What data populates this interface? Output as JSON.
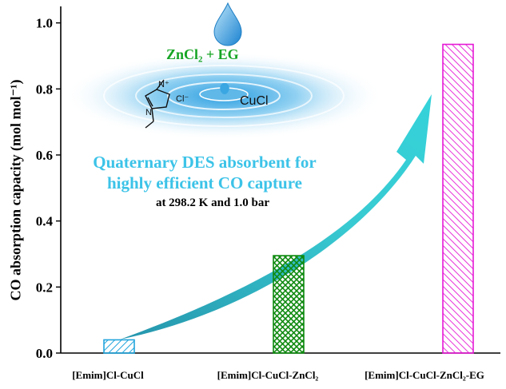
{
  "chart_data": {
    "type": "bar",
    "categories": [
      "[Emim]Cl-CuCl",
      "[Emim]Cl-CuCl-ZnCl₂",
      "[Emim]Cl-CuCl-ZnCl₂-EG"
    ],
    "values": [
      0.04,
      0.295,
      0.935
    ],
    "bar_colors": [
      "#22a5dc",
      "#0f8a10",
      "#e61ad6"
    ],
    "ylabel": "CO absorption capacity (mol mol⁻¹)",
    "ylim": [
      0,
      1.05
    ],
    "yticks": [
      0.0,
      0.2,
      0.4,
      0.6,
      0.8,
      1.0
    ],
    "ytick_labels": [
      "0.0",
      "0.2",
      "0.4",
      "0.6",
      "0.8",
      "1.0"
    ],
    "grid": false
  },
  "annotation": {
    "title_line1": "Quaternary DES absorbent for",
    "title_line2": "highly efficient CO capture",
    "conditions": "at 298.2 K and 1.0 bar",
    "reagent_label": "ZnCl₂ + EG",
    "salt_label": "CuCl",
    "anion_label": "Cl⁻",
    "cation_n_label": "N⁺",
    "ring_n_label": "N"
  },
  "colors": {
    "arrow": "#1fb8c4",
    "title": "#3cc3e8",
    "water": "#6ec2ea",
    "reagent": "#16a524"
  }
}
